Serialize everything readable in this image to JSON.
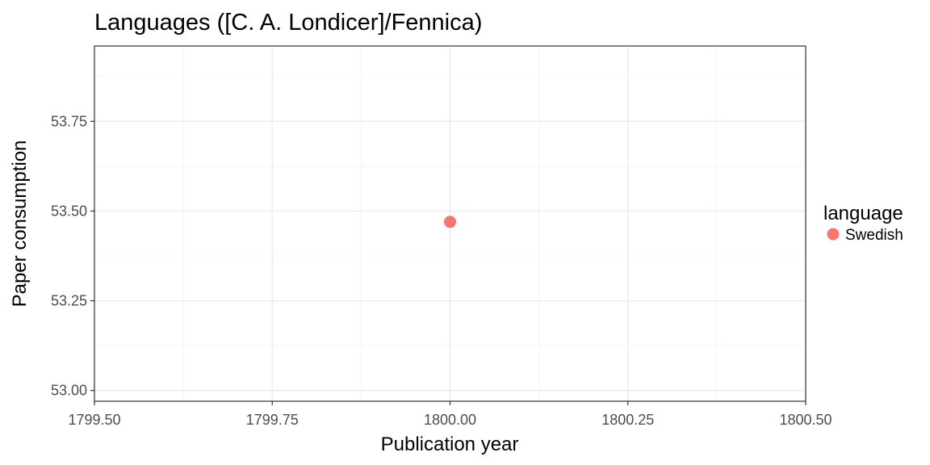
{
  "chart_data": {
    "type": "scatter",
    "title": "Languages ([C. A. Londicer]/Fennica)",
    "xlabel": "Publication year",
    "ylabel": "Paper consumption",
    "xlim": [
      1799.5,
      1800.5
    ],
    "ylim": [
      52.97,
      53.96
    ],
    "x_ticks": [
      1799.5,
      1799.75,
      1800.0,
      1800.25,
      1800.5
    ],
    "x_tick_labels": [
      "1799.50",
      "1799.75",
      "1800.00",
      "1800.25",
      "1800.50"
    ],
    "y_ticks": [
      53.0,
      53.25,
      53.5,
      53.75
    ],
    "y_tick_labels": [
      "53.00",
      "53.25",
      "53.50",
      "53.75"
    ],
    "grid": true,
    "legend_title": "language",
    "legend_position": "right",
    "series": [
      {
        "name": "Swedish",
        "color": "#F8766D",
        "points": [
          {
            "x": 1800.0,
            "y": 53.47
          }
        ]
      }
    ]
  }
}
